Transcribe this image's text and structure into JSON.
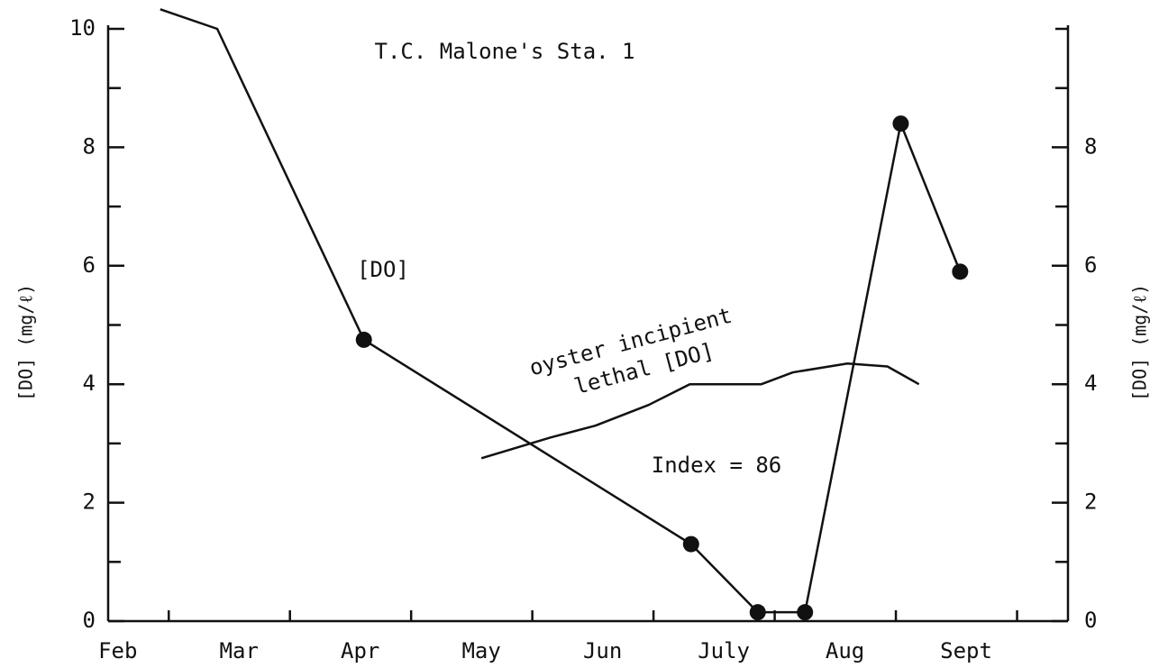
{
  "chart_data": {
    "type": "line",
    "title": "T.C. Malone's Sta. 1",
    "ylabel": "[DO] (mg/ℓ)",
    "y2label": "[DO] (mg/ℓ)",
    "annotations": [
      "[DO]",
      "oyster incipient",
      "lethal [DO]",
      "Index = 86"
    ],
    "xlim": [
      1.5,
      9.42
    ],
    "xticks": [
      {
        "value": 2,
        "label": "Feb"
      },
      {
        "value": 3,
        "label": "Mar"
      },
      {
        "value": 4,
        "label": "Apr"
      },
      {
        "value": 5,
        "label": "May"
      },
      {
        "value": 6,
        "label": "Jun"
      },
      {
        "value": 7,
        "label": "July"
      },
      {
        "value": 8,
        "label": "Aug"
      },
      {
        "value": 9,
        "label": "Sept"
      }
    ],
    "ylim": [
      0,
      10
    ],
    "yticks": [
      0,
      2,
      4,
      6,
      8,
      10
    ],
    "yminor_ticks": [
      1,
      3,
      5,
      7,
      9
    ],
    "y2lim": [
      0,
      10
    ],
    "y2ticks": [
      0,
      2,
      4,
      6,
      8
    ],
    "y2minor_ticks": [
      1,
      3,
      5,
      7,
      9,
      10
    ],
    "series": [
      {
        "name": "[DO]",
        "color": "#111111",
        "x": [
          1.93,
          2.4,
          3.61,
          6.31,
          6.86,
          7.25,
          8.04,
          8.53
        ],
        "values": [
          10.33,
          10,
          4.75,
          1.3,
          0.15,
          0.15,
          8.4,
          5.9
        ],
        "markers": [
          false,
          false,
          true,
          true,
          true,
          true,
          true,
          true
        ]
      },
      {
        "name": "oyster incipient lethal [DO]",
        "color": "#111111",
        "x": [
          4.58,
          5.15,
          5.52,
          5.96,
          6.3,
          6.89,
          7.15,
          7.6,
          7.93,
          8.19
        ],
        "values": [
          2.75,
          3.1,
          3.3,
          3.65,
          4.0,
          4.0,
          4.2,
          4.35,
          4.3,
          4.0
        ]
      }
    ]
  }
}
